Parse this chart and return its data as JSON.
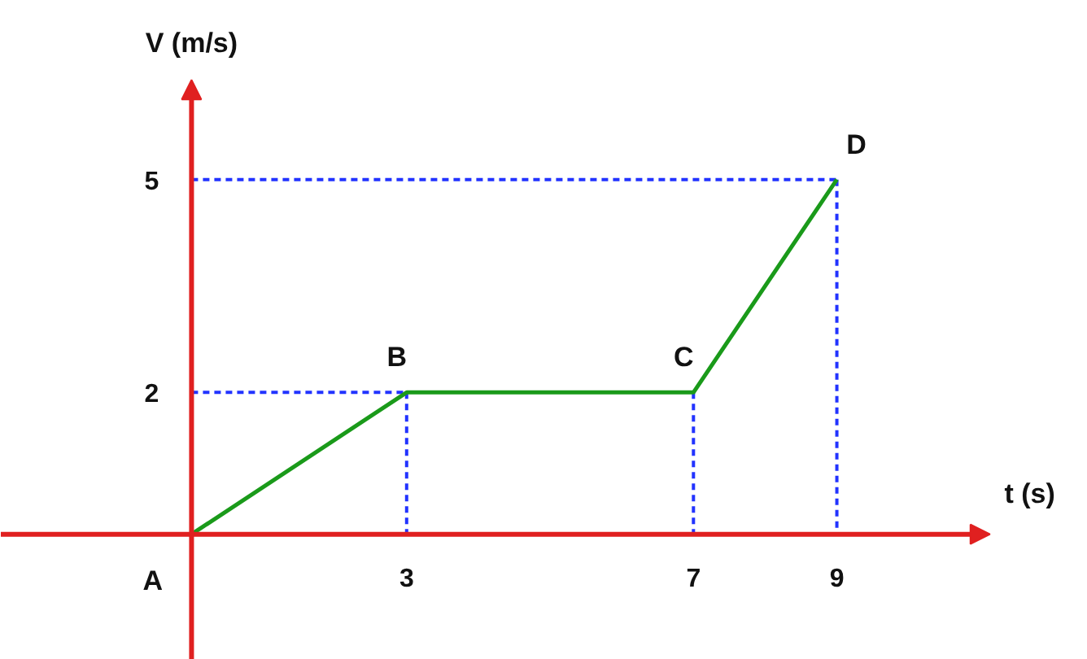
{
  "chart_data": {
    "type": "line",
    "xlabel": "t (s)",
    "ylabel": "V (m/s)",
    "xlim": [
      -2.66,
      12.5
    ],
    "ylim": [
      -1.77,
      7.52
    ],
    "xticks": [
      3,
      7,
      9
    ],
    "yticks": [
      2,
      5
    ],
    "grid": false,
    "marker": "none",
    "series": [
      {
        "x": [
          0,
          3
        ],
        "values": [
          2,
          2
        ],
        "color": "#2233ff",
        "line_style": "dashed"
      },
      {
        "x": [
          3,
          3
        ],
        "values": [
          2,
          0
        ],
        "color": "#2233ff",
        "line_style": "dashed"
      },
      {
        "x": [
          7,
          7
        ],
        "values": [
          2,
          0
        ],
        "color": "#2233ff",
        "line_style": "dashed"
      },
      {
        "x": [
          0,
          9
        ],
        "values": [
          5,
          5
        ],
        "color": "#2233ff",
        "line_style": "dashed"
      },
      {
        "x": [
          9,
          9
        ],
        "values": [
          5,
          0
        ],
        "color": "#2233ff",
        "line_style": "dashed"
      },
      {
        "x": [
          0,
          3,
          7,
          9
        ],
        "values": [
          0,
          2,
          2,
          5
        ],
        "color": "#1a9a1a",
        "line_style": "solid"
      }
    ],
    "annotations": [
      {
        "text": "A",
        "x": 0,
        "y": 0
      },
      {
        "text": "B",
        "x": 3,
        "y": 2
      },
      {
        "text": "C",
        "x": 7,
        "y": 2
      },
      {
        "text": "D",
        "x": 9,
        "y": 5
      }
    ]
  }
}
